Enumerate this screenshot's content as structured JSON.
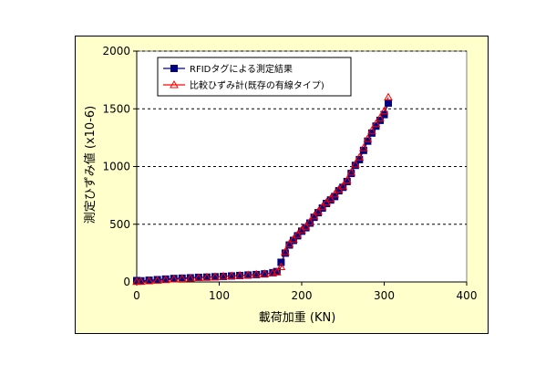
{
  "chart_data": {
    "type": "scatter",
    "title": "",
    "xlabel": "載荷加重 (KN)",
    "ylabel": "測定ひずみ値 (x10-6)",
    "xlim": [
      0,
      400
    ],
    "ylim": [
      0,
      2000
    ],
    "x_ticks": [
      0,
      100,
      200,
      300,
      400
    ],
    "y_ticks": [
      0,
      500,
      1000,
      1500,
      2000
    ],
    "x_tick_labels": [
      "0",
      "100",
      "200",
      "300",
      "400"
    ],
    "y_tick_labels": [
      "0",
      "500",
      "1000",
      "1500",
      "2000"
    ],
    "grid": "horizontal dashed",
    "legend_position": "top-left",
    "series": [
      {
        "name": "RFIDタグによる測定結果",
        "color": "#000080",
        "marker": "square",
        "x": [
          0,
          5,
          15,
          25,
          35,
          45,
          55,
          65,
          75,
          85,
          95,
          105,
          115,
          125,
          135,
          145,
          155,
          165,
          170,
          175,
          180,
          185,
          190,
          195,
          200,
          205,
          210,
          215,
          220,
          225,
          230,
          235,
          240,
          245,
          250,
          255,
          260,
          265,
          270,
          275,
          280,
          285,
          290,
          295,
          300,
          305
        ],
        "y": [
          12,
          10,
          15,
          20,
          25,
          30,
          33,
          36,
          40,
          42,
          45,
          48,
          52,
          56,
          60,
          64,
          70,
          80,
          90,
          170,
          250,
          320,
          360,
          400,
          440,
          470,
          510,
          560,
          600,
          640,
          680,
          710,
          740,
          790,
          820,
          870,
          940,
          1010,
          1060,
          1140,
          1220,
          1290,
          1350,
          1400,
          1450,
          1550
        ]
      },
      {
        "name": "比較ひずみ計(既存の有線タイプ)",
        "color": "#ff0000",
        "marker": "triangle-open",
        "x": [
          0,
          5,
          15,
          25,
          35,
          45,
          55,
          65,
          75,
          85,
          95,
          105,
          115,
          125,
          135,
          145,
          155,
          165,
          170,
          175,
          180,
          185,
          190,
          195,
          200,
          205,
          210,
          215,
          220,
          225,
          230,
          235,
          240,
          245,
          250,
          255,
          260,
          265,
          270,
          275,
          280,
          285,
          290,
          295,
          300,
          305
        ],
        "y": [
          2,
          3,
          8,
          13,
          18,
          24,
          28,
          32,
          36,
          40,
          44,
          48,
          52,
          56,
          60,
          65,
          70,
          78,
          85,
          130,
          260,
          330,
          370,
          410,
          450,
          480,
          520,
          570,
          610,
          650,
          690,
          720,
          760,
          800,
          830,
          880,
          950,
          1020,
          1080,
          1160,
          1240,
          1310,
          1370,
          1420,
          1480,
          1600
        ]
      }
    ]
  }
}
